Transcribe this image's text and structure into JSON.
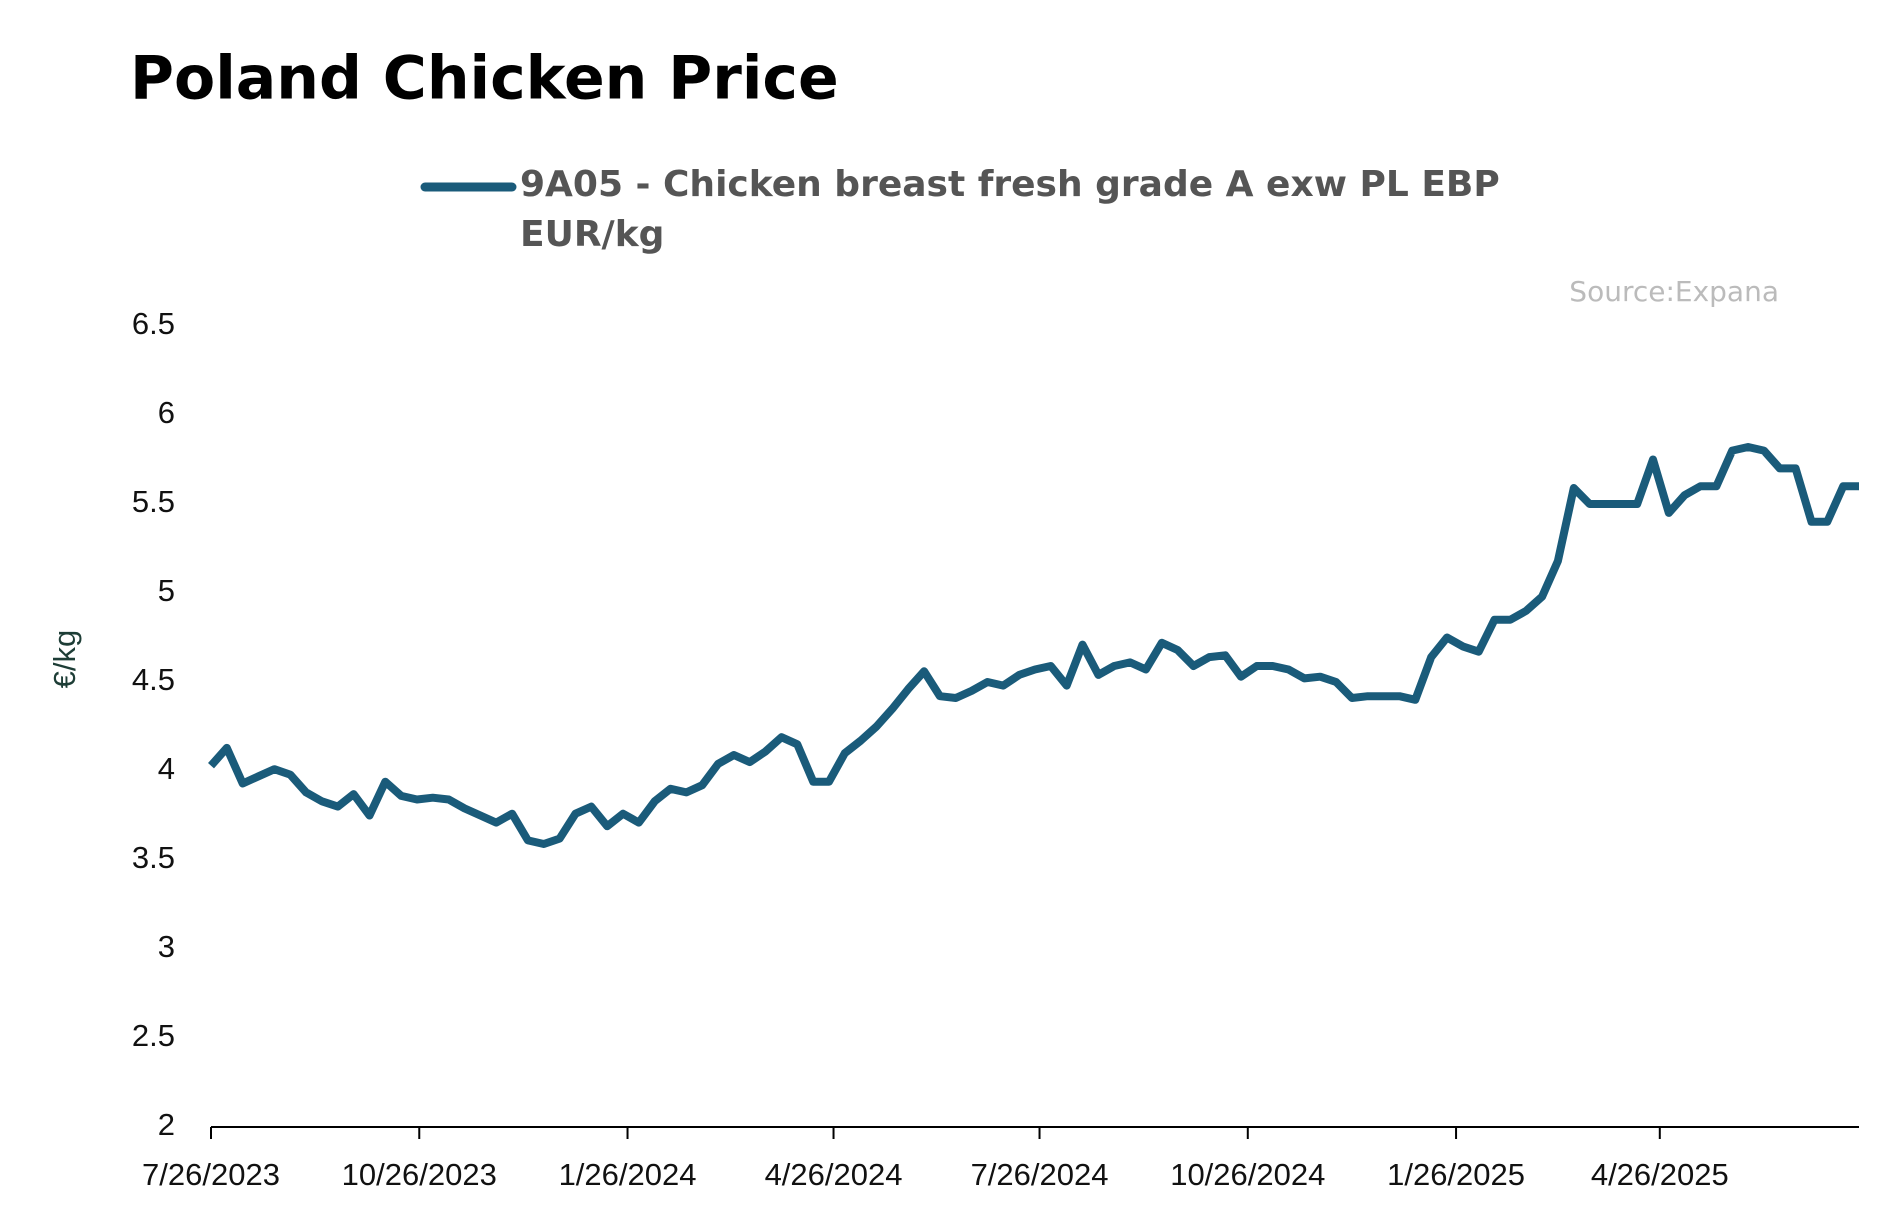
{
  "chart_data": {
    "type": "line",
    "title": "Poland Chicken Price",
    "source": "Source:Expana",
    "y_label": "€/kg",
    "x": [
      "2023-07-26",
      "2023-08-02",
      "2023-08-09",
      "2023-08-16",
      "2023-08-23",
      "2023-08-30",
      "2023-09-06",
      "2023-09-13",
      "2023-09-20",
      "2023-09-27",
      "2023-10-04",
      "2023-10-11",
      "2023-10-18",
      "2023-10-25",
      "2023-11-01",
      "2023-11-08",
      "2023-11-15",
      "2023-11-22",
      "2023-11-29",
      "2023-12-06",
      "2023-12-13",
      "2023-12-20",
      "2023-12-27",
      "2024-01-03",
      "2024-01-10",
      "2024-01-17",
      "2024-01-24",
      "2024-01-31",
      "2024-02-07",
      "2024-02-14",
      "2024-02-21",
      "2024-02-28",
      "2024-03-06",
      "2024-03-13",
      "2024-03-20",
      "2024-03-27",
      "2024-04-03",
      "2024-04-10",
      "2024-04-17",
      "2024-04-24",
      "2024-05-01",
      "2024-05-08",
      "2024-05-15",
      "2024-05-22",
      "2024-05-29",
      "2024-06-05",
      "2024-06-12",
      "2024-06-19",
      "2024-06-26",
      "2024-07-03",
      "2024-07-10",
      "2024-07-17",
      "2024-07-24",
      "2024-07-31",
      "2024-08-07",
      "2024-08-14",
      "2024-08-21",
      "2024-08-28",
      "2024-09-04",
      "2024-09-11",
      "2024-09-18",
      "2024-09-25",
      "2024-10-02",
      "2024-10-09",
      "2024-10-16",
      "2024-10-23",
      "2024-10-30",
      "2024-11-06",
      "2024-11-13",
      "2024-11-20",
      "2024-11-27",
      "2024-12-04",
      "2024-12-11",
      "2024-12-18",
      "2024-12-25",
      "2025-01-01",
      "2025-01-08",
      "2025-01-15",
      "2025-01-22",
      "2025-01-29",
      "2025-02-05",
      "2025-02-12",
      "2025-02-19",
      "2025-02-26",
      "2025-03-05",
      "2025-03-12",
      "2025-03-19",
      "2025-03-26",
      "2025-04-02",
      "2025-04-09",
      "2025-04-16",
      "2025-04-23",
      "2025-04-30",
      "2025-05-07",
      "2025-05-14",
      "2025-05-21",
      "2025-05-28",
      "2025-06-04",
      "2025-06-11",
      "2025-06-18",
      "2025-06-25",
      "2025-07-02",
      "2025-07-09",
      "2025-07-16",
      "2025-07-23"
    ],
    "series": [
      {
        "name": "9A05 - Chicken breast fresh grade A exw PL EBP EUR/kg",
        "color": "#1a5b7a",
        "values": [
          4.03,
          4.13,
          3.93,
          3.97,
          4.01,
          3.98,
          3.88,
          3.83,
          3.8,
          3.87,
          3.75,
          3.94,
          3.86,
          3.84,
          3.85,
          3.84,
          3.79,
          3.75,
          3.71,
          3.76,
          3.61,
          3.59,
          3.62,
          3.76,
          3.8,
          3.69,
          3.76,
          3.71,
          3.83,
          3.9,
          3.88,
          3.92,
          4.04,
          4.09,
          4.05,
          4.11,
          4.19,
          4.15,
          3.94,
          3.94,
          4.1,
          4.17,
          4.25,
          4.35,
          4.46,
          4.56,
          4.42,
          4.41,
          4.45,
          4.5,
          4.48,
          4.54,
          4.57,
          4.59,
          4.48,
          4.71,
          4.54,
          4.59,
          4.61,
          4.57,
          4.72,
          4.68,
          4.59,
          4.64,
          4.65,
          4.53,
          4.59,
          4.59,
          4.57,
          4.52,
          4.53,
          4.5,
          4.41,
          4.42,
          4.42,
          4.42,
          4.4,
          4.64,
          4.75,
          4.7,
          4.67,
          4.85,
          4.85,
          4.9,
          4.98,
          5.18,
          5.59,
          5.5,
          5.5,
          5.5,
          5.5,
          5.75,
          5.45,
          5.55,
          5.6,
          5.6,
          5.8,
          5.82,
          5.8,
          5.7,
          5.7,
          5.4,
          5.4,
          5.6,
          5.6
        ]
      }
    ],
    "xlim": [
      "2023-07-26",
      "2025-07-23"
    ],
    "xticks": [
      {
        "value": "2023-07-26",
        "label": "7/26/2023"
      },
      {
        "value": "2023-10-26",
        "label": "10/26/2023"
      },
      {
        "value": "2024-01-26",
        "label": "1/26/2024"
      },
      {
        "value": "2024-04-26",
        "label": "4/26/2024"
      },
      {
        "value": "2024-07-26",
        "label": "7/26/2024"
      },
      {
        "value": "2024-10-26",
        "label": "10/26/2024"
      },
      {
        "value": "2025-01-26",
        "label": "1/26/2025"
      },
      {
        "value": "2025-04-26",
        "label": "4/26/2025"
      }
    ],
    "ylim": [
      2,
      6.5
    ],
    "yticks": [
      2,
      2.5,
      3,
      3.5,
      4,
      4.5,
      5,
      5.5,
      6,
      6.5
    ],
    "grid": false
  }
}
